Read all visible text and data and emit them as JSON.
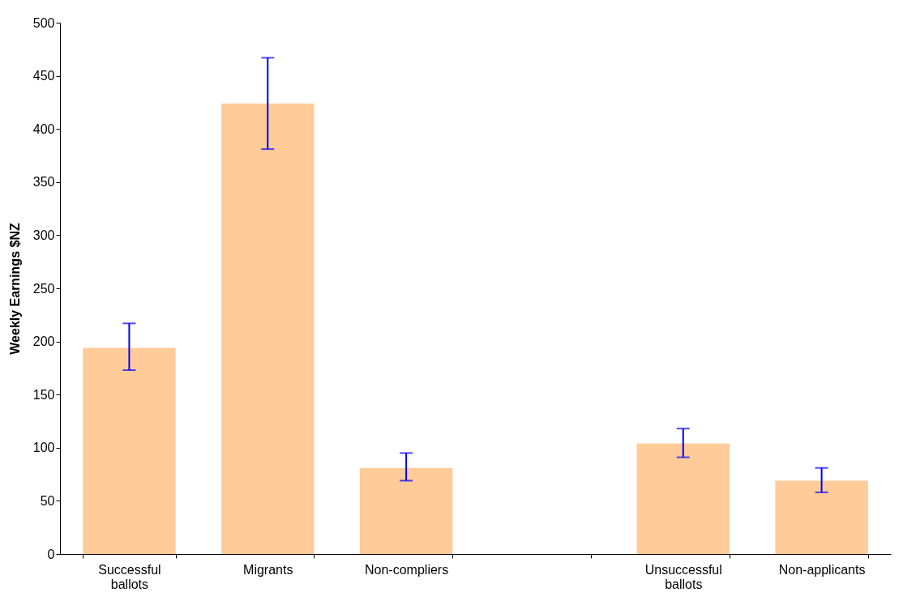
{
  "chart_data": {
    "type": "bar",
    "ylabel": "Weekly Earnings $NZ",
    "categories": [
      "Successful ballots",
      "Migrants",
      "Non-compliers",
      null,
      "Unsuccessful ballots",
      "Non-applicants"
    ],
    "values": [
      194,
      424,
      81,
      null,
      104,
      69
    ],
    "errors": [
      [
        173,
        217
      ],
      [
        381,
        467
      ],
      [
        69,
        95
      ],
      null,
      [
        91,
        118
      ],
      [
        58,
        81
      ]
    ],
    "color": "#ffcc99",
    "ylim": [
      0,
      500
    ],
    "yticks": [
      0,
      50,
      100,
      150,
      200,
      250,
      300,
      350,
      400,
      450,
      500
    ],
    "grid": false
  }
}
